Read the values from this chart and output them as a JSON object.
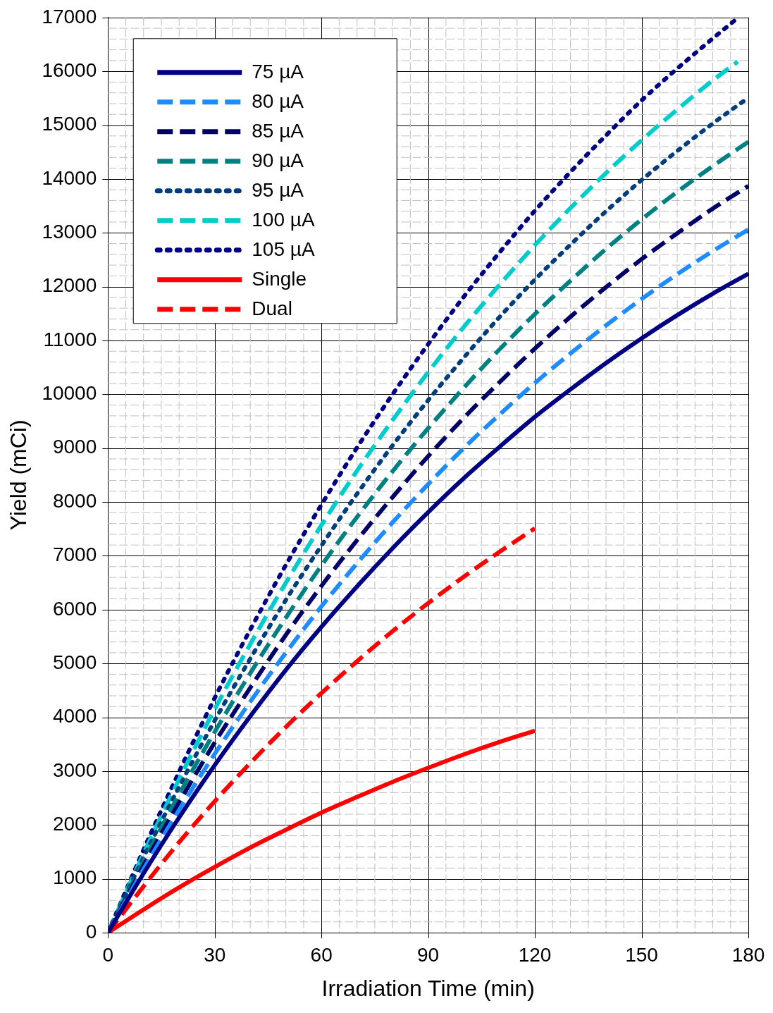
{
  "chart_data": {
    "type": "line",
    "xlabel": "Irradiation Time (min)",
    "ylabel": "Yield (mCi)",
    "x": [
      0,
      10,
      20,
      30,
      40,
      50,
      60,
      70,
      80,
      90,
      100,
      110,
      120,
      130,
      140,
      150,
      160,
      170,
      180
    ],
    "xlim": [
      0,
      180
    ],
    "xticks": [
      0,
      30,
      60,
      90,
      120,
      150,
      180
    ],
    "ylim": [
      0,
      17000
    ],
    "yticks": [
      0,
      1000,
      2000,
      3000,
      4000,
      5000,
      6000,
      7000,
      8000,
      9000,
      10000,
      11000,
      12000,
      13000,
      14000,
      15000,
      16000,
      17000
    ],
    "grid": true,
    "legend": "top left",
    "marker": "none",
    "series": [
      {
        "name": "75 µA",
        "color": "#000080",
        "line_style": "solid",
        "values": [
          0,
          1100,
          2140,
          3110,
          4020,
          4880,
          5680,
          6430,
          7140,
          7810,
          8440,
          9020,
          9580,
          10090,
          10580,
          11040,
          11470,
          11870,
          12240
        ]
      },
      {
        "name": "80 µA",
        "color": "#1e8cff",
        "line_style": "dashed",
        "values": [
          0,
          1180,
          2280,
          3320,
          4290,
          5200,
          6060,
          6860,
          7620,
          8330,
          9000,
          9620,
          10210,
          10760,
          11280,
          11770,
          12230,
          12660,
          13060
        ]
      },
      {
        "name": "85 µA",
        "color": "#000066",
        "line_style": "dashed",
        "values": [
          0,
          1250,
          2420,
          3530,
          4550,
          5530,
          6440,
          7290,
          8090,
          8850,
          9560,
          10220,
          10850,
          11440,
          11990,
          12510,
          12990,
          13450,
          13870
        ]
      },
      {
        "name": "90 µA",
        "color": "#008080",
        "line_style": "dashed",
        "values": [
          0,
          1320,
          2570,
          3730,
          4820,
          5850,
          6820,
          7720,
          8570,
          9370,
          10120,
          10830,
          11490,
          12110,
          12700,
          13250,
          13760,
          14240,
          14690
        ]
      },
      {
        "name": "95 µA",
        "color": "#003d7a",
        "line_style": "dotted",
        "values": [
          0,
          1400,
          2710,
          3940,
          5090,
          6180,
          7190,
          8150,
          9050,
          9890,
          10680,
          11430,
          12130,
          12780,
          13400,
          13980,
          14520,
          15030,
          15510
        ]
      },
      {
        "name": "100 µA",
        "color": "#00cccc",
        "line_style": "dashed",
        "x": [
          0,
          10,
          20,
          30,
          40,
          50,
          60,
          70,
          80,
          90,
          100,
          110,
          120,
          130,
          140,
          150,
          160,
          170,
          177
        ],
        "values": [
          0,
          1470,
          2850,
          4150,
          5360,
          6500,
          7570,
          8580,
          9520,
          10410,
          11250,
          12030,
          12770,
          13460,
          14110,
          14720,
          15290,
          15830,
          16180
        ]
      },
      {
        "name": "105 µA",
        "color": "#000080",
        "line_style": "dotted",
        "x": [
          0,
          10,
          20,
          30,
          40,
          50,
          60,
          70,
          80,
          90,
          100,
          110,
          120,
          130,
          140,
          150,
          160,
          170,
          177
        ],
        "values": [
          0,
          1540,
          2990,
          4360,
          5630,
          6830,
          7950,
          9010,
          10000,
          10930,
          11810,
          12630,
          13410,
          14130,
          14810,
          15460,
          16050,
          16610,
          16990
        ]
      },
      {
        "name": "Single",
        "color": "#ff0000",
        "line_style": "solid",
        "x": [
          0,
          10,
          20,
          30,
          40,
          50,
          60,
          70,
          80,
          90,
          100,
          110,
          120
        ],
        "values": [
          0,
          430,
          840,
          1220,
          1580,
          1910,
          2230,
          2520,
          2800,
          3060,
          3310,
          3540,
          3750
        ]
      },
      {
        "name": "Dual",
        "color": "#ff0000",
        "line_style": "dashed",
        "x": [
          0,
          10,
          20,
          30,
          40,
          50,
          60,
          70,
          80,
          90,
          100,
          110,
          120
        ],
        "values": [
          0,
          860,
          1680,
          2440,
          3150,
          3820,
          4450,
          5040,
          5600,
          6120,
          6610,
          7070,
          7510
        ]
      }
    ]
  }
}
